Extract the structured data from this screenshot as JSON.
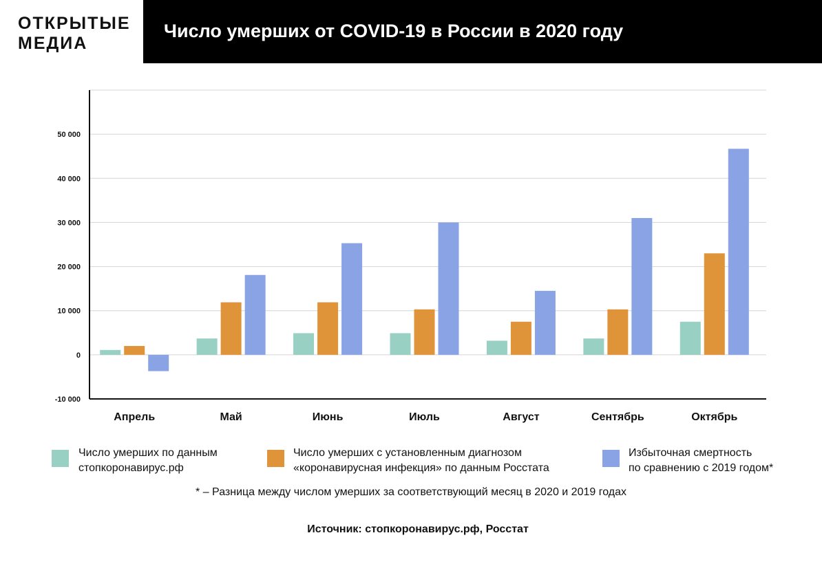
{
  "logo": {
    "line1": "ОТКРЫТЫЕ",
    "line2": "МЕДИА"
  },
  "header": {
    "title": "Число умерших от COVID-19 в России в 2020 году"
  },
  "chart_data": {
    "type": "bar",
    "title": "Число умерших от COVID-19 в России в 2020 году",
    "xlabel": "",
    "ylabel": "",
    "categories": [
      "Апрель",
      "Май",
      "Июнь",
      "Июль",
      "Август",
      "Сентябрь",
      "Октябрь"
    ],
    "series": [
      {
        "name": "Число умерших по данным стопкоронавирус.рф",
        "color": "#98d0c4",
        "values": [
          1100,
          3700,
          4900,
          4900,
          3200,
          3700,
          7500
        ]
      },
      {
        "name": "Число умерших с установленным диагнозом «коронавирусная инфекция» по данным Росстата",
        "color": "#e0943a",
        "values": [
          2000,
          11900,
          11900,
          10300,
          7500,
          10300,
          23000
        ]
      },
      {
        "name": "Избыточная смертность по сравнению с 2019 годом*",
        "color": "#8aa3e4",
        "values": [
          -3700,
          18100,
          25300,
          30000,
          14500,
          31000,
          46700
        ]
      }
    ],
    "ylim": [
      -10000,
      60000
    ],
    "yticks": [
      -10000,
      0,
      10000,
      20000,
      30000,
      40000,
      50000
    ],
    "ytick_labels": [
      "-10 000",
      "0",
      "10 000",
      "20 000",
      "30 000",
      "40 000",
      "50 000"
    ],
    "grid": true,
    "legend_position": "bottom"
  },
  "legend": {
    "items": [
      {
        "line1": "Число умерших по данным",
        "line2": "стопкоронавирус.рф",
        "color": "#98d0c4"
      },
      {
        "line1": "Число умерших с установленным диагнозом",
        "line2": "«коронавирусная инфекция» по данным Росстата",
        "color": "#e0943a"
      },
      {
        "line1": "Избыточная смертность",
        "line2": "по сравнению с 2019 годом*",
        "color": "#8aa3e4"
      }
    ]
  },
  "footnote": "* – Разница между числом умерших за соответствующий месяц в 2020 и 2019 годах",
  "source": "Источник: стопкоронавирус.рф, Росстат"
}
